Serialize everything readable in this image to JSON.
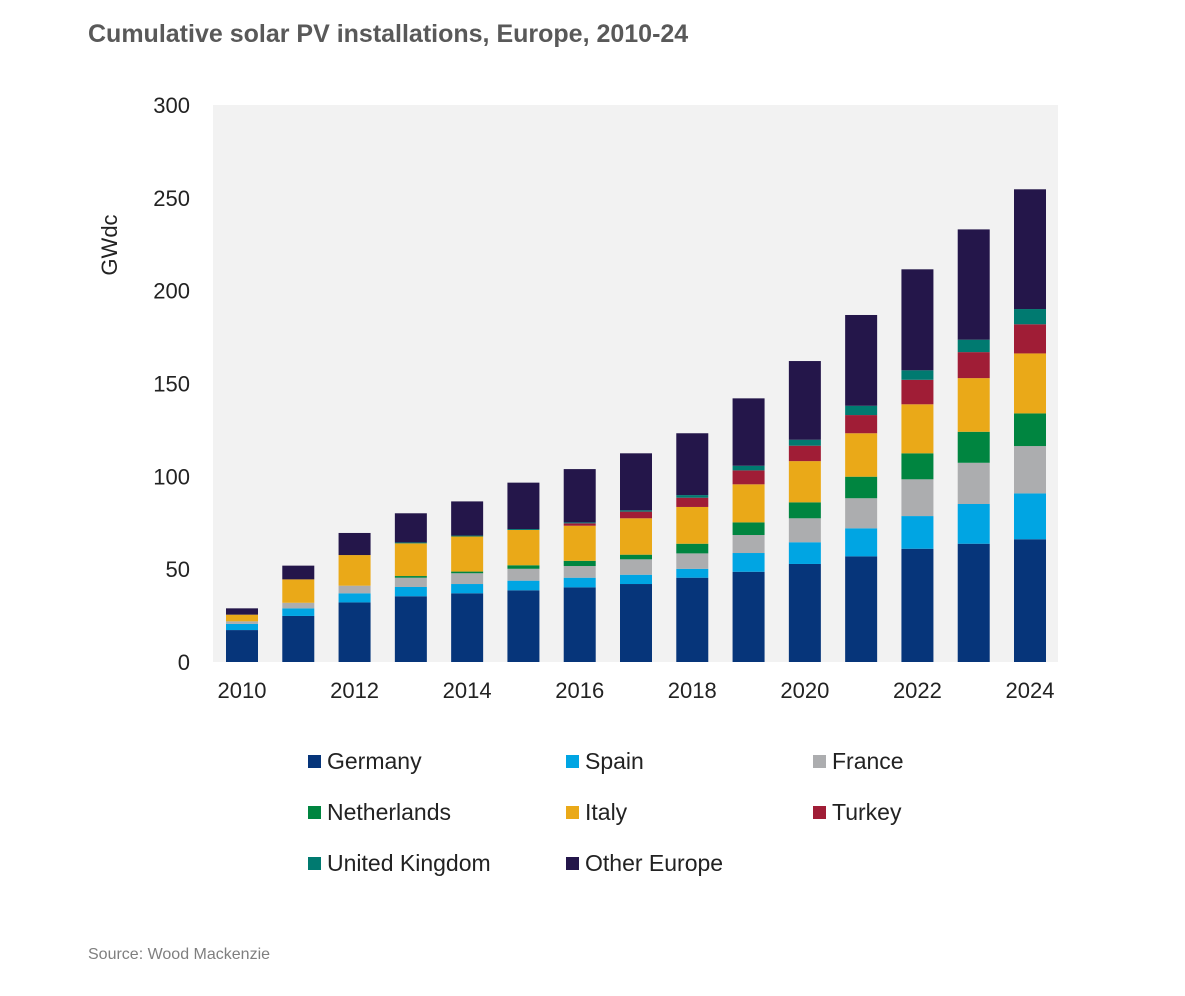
{
  "chart_data": {
    "type": "bar",
    "stacked": true,
    "title": "Cumulative solar PV installations, Europe, 2010-24",
    "xlabel": "",
    "ylabel": "GWdc",
    "ylim": [
      0,
      300
    ],
    "yticks": [
      0,
      50,
      100,
      150,
      200,
      250,
      300
    ],
    "xtick_labels": [
      "2010",
      "2012",
      "2014",
      "2016",
      "2018",
      "2020",
      "2022",
      "2024"
    ],
    "grid": false,
    "legend_position": "bottom",
    "categories": [
      "2010",
      "2011",
      "2012",
      "2013",
      "2014",
      "2015",
      "2016",
      "2017",
      "2018",
      "2019",
      "2020",
      "2021",
      "2022",
      "2023",
      "2024"
    ],
    "series": [
      {
        "name": "Germany",
        "color": "#06357a",
        "values": [
          17.2,
          24.8,
          32.1,
          35.4,
          37.0,
          38.6,
          40.2,
          42.0,
          45.4,
          48.6,
          52.8,
          56.9,
          61.0,
          63.7,
          66.1
        ]
      },
      {
        "name": "Spain",
        "color": "#00a5e3",
        "values": [
          3.3,
          4.1,
          4.9,
          5.0,
          5.0,
          5.2,
          5.2,
          5.0,
          4.8,
          10.1,
          11.7,
          15.1,
          17.6,
          21.4,
          24.7
        ]
      },
      {
        "name": "France",
        "color": "#acadaf",
        "values": [
          1.4,
          3.0,
          4.1,
          5.0,
          5.8,
          6.4,
          6.3,
          8.3,
          8.3,
          9.7,
          12.9,
          16.2,
          19.8,
          22.2,
          25.5
        ]
      },
      {
        "name": "Netherlands",
        "color": "#008540",
        "values": [
          0,
          0,
          0,
          0.9,
          0.9,
          1.9,
          2.8,
          2.5,
          5.2,
          6.8,
          8.6,
          11.6,
          14.0,
          16.7,
          17.6
        ]
      },
      {
        "name": "Italy",
        "color": "#eaa918",
        "values": [
          3.6,
          12.6,
          16.5,
          17.6,
          18.9,
          19.0,
          18.9,
          19.6,
          19.8,
          20.5,
          22.2,
          23.4,
          26.4,
          28.9,
          32.3
        ]
      },
      {
        "name": "Turkey",
        "color": "#a01d36",
        "values": [
          0,
          0,
          0,
          0,
          0,
          0,
          1.3,
          3.6,
          5.0,
          7.5,
          8.3,
          9.8,
          13.2,
          14.0,
          15.7
        ]
      },
      {
        "name": "United Kingdom",
        "color": "#007a70",
        "values": [
          0,
          0,
          0,
          0.5,
          0.5,
          0.5,
          0.5,
          0.7,
          1.4,
          2.5,
          3.2,
          5.0,
          5.1,
          6.7,
          8.2
        ]
      },
      {
        "name": "Other Europe",
        "color": "#24164a",
        "values": [
          3.4,
          7.4,
          11.9,
          15.7,
          18.4,
          25.0,
          28.7,
          30.7,
          33.3,
          36.3,
          42.4,
          48.9,
          54.4,
          59.4,
          64.5
        ]
      }
    ],
    "source": "Source:  Wood Mackenzie"
  }
}
